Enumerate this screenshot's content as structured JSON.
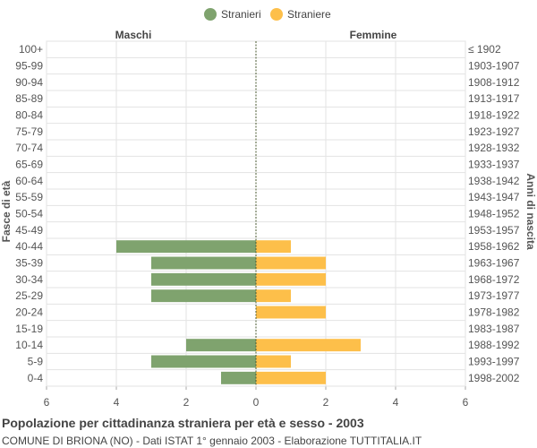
{
  "chart_data": {
    "type": "bar",
    "title": "Popolazione per cittadinanza straniera per età e sesso - 2003",
    "subtitle": "COMUNE DI BRIONA (NO) - Dati ISTAT 1° gennaio 2003 - Elaborazione TUTTITALIA.IT",
    "ylabel_left": "Fasce di età",
    "ylabel_right": "Anni di nascita",
    "side_labels": {
      "left": "Maschi",
      "right": "Femmine"
    },
    "categories": [
      "100+",
      "95-99",
      "90-94",
      "85-89",
      "80-84",
      "75-79",
      "70-74",
      "65-69",
      "60-64",
      "55-59",
      "50-54",
      "45-49",
      "40-44",
      "35-39",
      "30-34",
      "25-29",
      "20-24",
      "15-19",
      "10-14",
      "5-9",
      "0-4"
    ],
    "birth_years": [
      "≤ 1902",
      "1903-1907",
      "1908-1912",
      "1913-1917",
      "1918-1922",
      "1923-1927",
      "1928-1932",
      "1933-1937",
      "1938-1942",
      "1943-1947",
      "1948-1952",
      "1953-1957",
      "1958-1962",
      "1963-1967",
      "1968-1972",
      "1973-1977",
      "1978-1982",
      "1983-1987",
      "1988-1992",
      "1993-1997",
      "1998-2002"
    ],
    "series": [
      {
        "name": "Stranieri",
        "color": "#7fa36e",
        "values": [
          0,
          0,
          0,
          0,
          0,
          0,
          0,
          0,
          0,
          0,
          0,
          0,
          4,
          3,
          3,
          3,
          0,
          0,
          2,
          3,
          1
        ]
      },
      {
        "name": "Straniere",
        "color": "#fdbf4a",
        "values": [
          0,
          0,
          0,
          0,
          0,
          0,
          0,
          0,
          0,
          0,
          0,
          0,
          1,
          2,
          2,
          1,
          2,
          0,
          3,
          1,
          2
        ]
      }
    ],
    "xlim": [
      -6,
      6
    ],
    "xticks": [
      -6,
      -4,
      -2,
      0,
      2,
      4,
      6
    ],
    "xtick_labels": [
      "6",
      "4",
      "2",
      "0",
      "2",
      "4",
      "6"
    ],
    "grid": true,
    "legend_position": "top"
  }
}
